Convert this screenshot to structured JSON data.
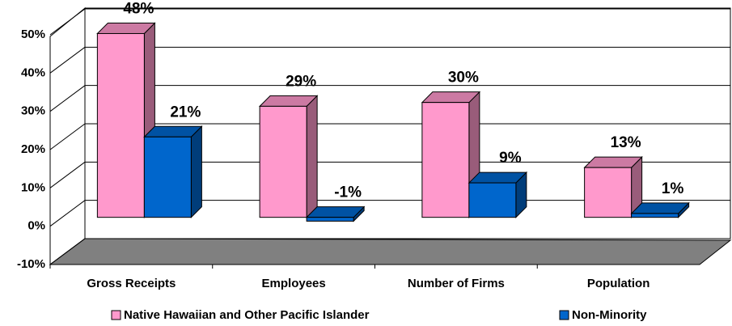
{
  "chart_data": {
    "type": "bar3d",
    "categories": [
      "Gross Receipts",
      "Employees",
      "Number of Firms",
      "Population"
    ],
    "series": [
      {
        "name": "Native Hawaiian and Other Pacific Islander",
        "color": "#ff99cc",
        "values": [
          48,
          29,
          30,
          13
        ],
        "value_labels": [
          "48%",
          "29%",
          "30%",
          "13%"
        ]
      },
      {
        "name": "Non-Minority",
        "color": "#0066cc",
        "values": [
          21,
          -1,
          9,
          1
        ],
        "value_labels": [
          "21%",
          "-1%",
          "9%",
          "1%"
        ]
      }
    ],
    "ylim": [
      -10,
      50
    ],
    "yticks": [
      {
        "value": -10,
        "label": "-10%"
      },
      {
        "value": 0,
        "label": "0%"
      },
      {
        "value": 10,
        "label": "10%"
      },
      {
        "value": 20,
        "label": "20%"
      },
      {
        "value": 30,
        "label": "30%"
      },
      {
        "value": 40,
        "label": "40%"
      },
      {
        "value": 50,
        "label": "50%"
      }
    ],
    "grid": true
  }
}
